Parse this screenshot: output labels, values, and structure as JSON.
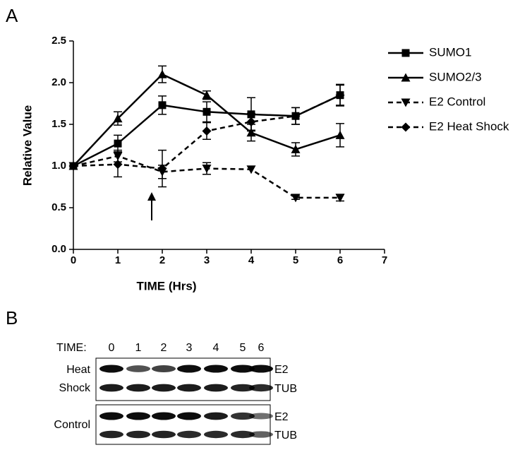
{
  "panel_labels": [
    "A",
    "B"
  ],
  "chart_data": {
    "type": "line",
    "xlabel": "TIME (Hrs)",
    "ylabel": "Relative Value",
    "x": [
      0,
      1,
      2,
      3,
      4,
      5,
      6
    ],
    "series": [
      {
        "name": "SUMO1",
        "color": "#000000",
        "dash": false,
        "marker": "square",
        "values": [
          1.0,
          1.27,
          1.73,
          1.65,
          1.62,
          1.6,
          1.85
        ],
        "errors": [
          0,
          0.1,
          0.11,
          0.12,
          0.2,
          0.1,
          0.13
        ]
      },
      {
        "name": "SUMO2/3",
        "color": "#000000",
        "dash": false,
        "marker": "triangle-up",
        "values": [
          1.0,
          1.57,
          2.1,
          1.85,
          1.4,
          1.2,
          1.37
        ],
        "errors": [
          0,
          0.08,
          0.1,
          0.05,
          0.1,
          0.08,
          0.14
        ]
      },
      {
        "name": "E2 Control",
        "color": "#000000",
        "dash": true,
        "marker": "triangle-down",
        "values": [
          1.0,
          1.12,
          0.93,
          0.97,
          0.96,
          0.62,
          0.62
        ],
        "errors": [
          0,
          0.07,
          0.08,
          0.07,
          0,
          0.02,
          0.04
        ]
      },
      {
        "name": "E2 Heat Shock",
        "color": "#000000",
        "dash": true,
        "marker": "diamond",
        "values": [
          1.0,
          1.02,
          0.97,
          1.42,
          1.53,
          1.6,
          1.85
        ],
        "errors": [
          0,
          0.15,
          0.22,
          0.1,
          0.1,
          0.1,
          0.12
        ]
      }
    ],
    "xlim": [
      0,
      7
    ],
    "xticks": [
      0,
      1,
      2,
      3,
      4,
      5,
      6,
      7
    ],
    "ylim": [
      0,
      2.5
    ],
    "yticks": [
      {
        "value": 0,
        "label": "0.0"
      },
      0.5,
      {
        "value": 1,
        "label": "1.0"
      },
      1.5,
      {
        "value": 2,
        "label": "2.0"
      },
      2.5
    ],
    "grid": false,
    "legend": "right"
  },
  "blot": {
    "time_label": "TIME:",
    "times": [
      "0",
      "1",
      "2",
      "3",
      "4",
      "5",
      "6"
    ],
    "groups": [
      {
        "label_lines": [
          "Heat",
          "Shock"
        ],
        "bands": [
          "E2",
          "TUB"
        ]
      },
      {
        "label_lines": [
          "Control"
        ],
        "bands": [
          "E2",
          "TUB"
        ]
      }
    ]
  }
}
